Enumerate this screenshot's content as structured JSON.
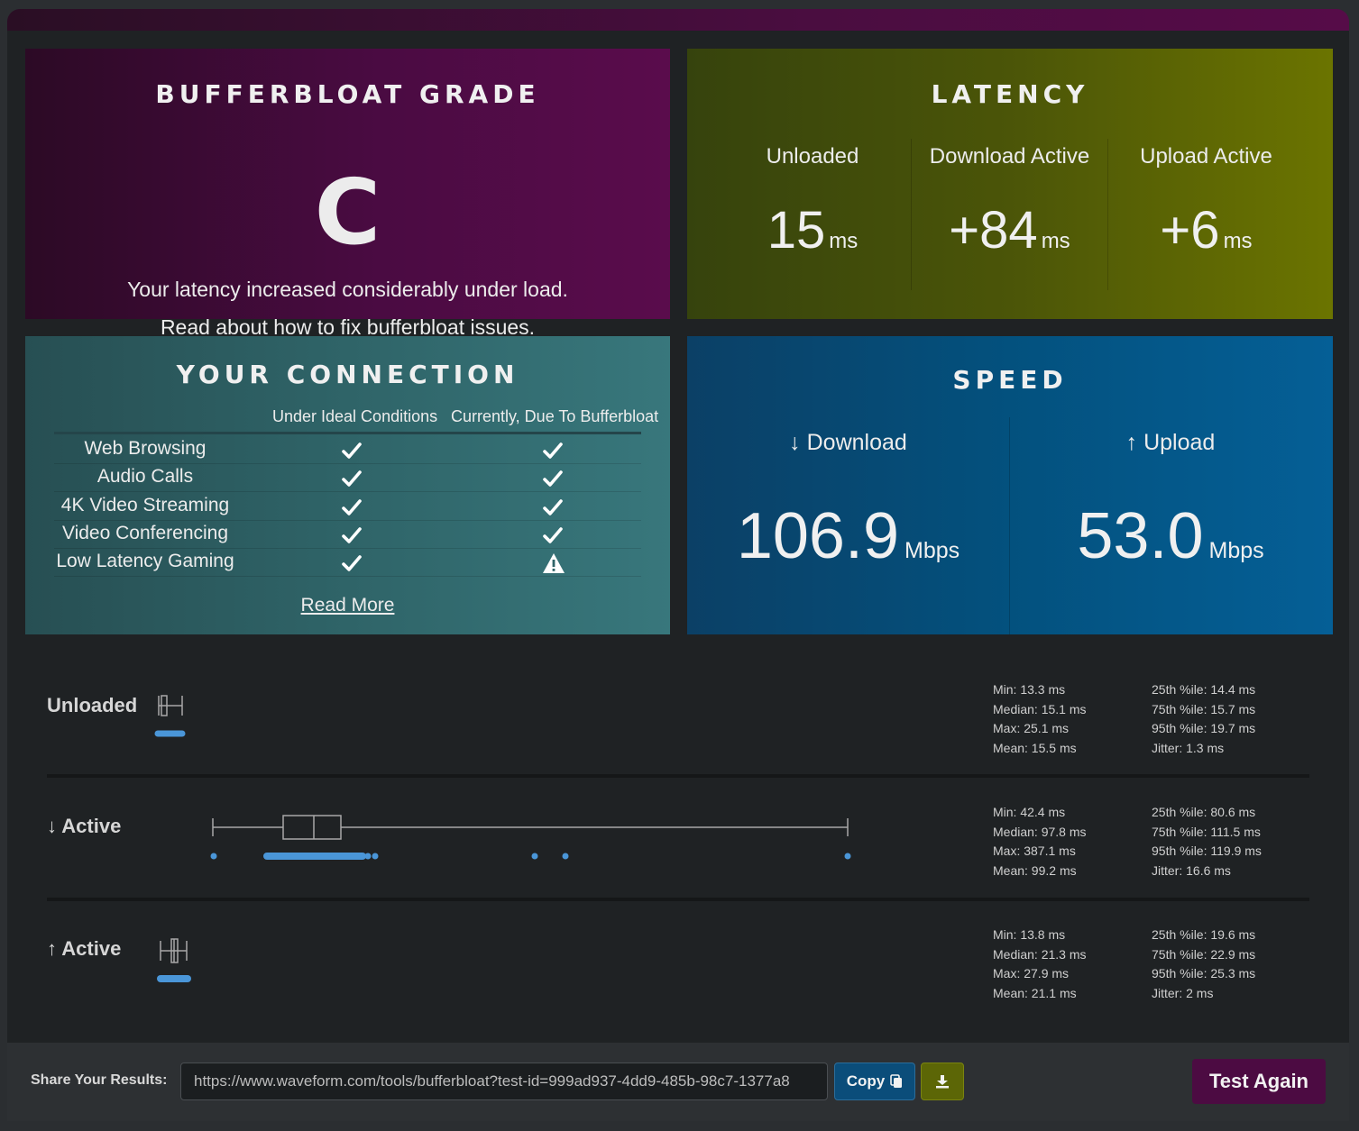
{
  "grade": {
    "title": "BUFFERBLOAT GRADE",
    "letter": "C",
    "description": "Your latency increased considerably under load.",
    "read_prefix": "Read about ",
    "read_link": "how to fix bufferbloat issues."
  },
  "latency": {
    "title": "LATENCY",
    "unit": "ms",
    "columns": [
      {
        "label": "Unloaded",
        "value": "15"
      },
      {
        "label": "Download Active",
        "value": "+84"
      },
      {
        "label": "Upload Active",
        "value": "+6"
      }
    ]
  },
  "connection": {
    "title": "YOUR CONNECTION",
    "header_ideal": "Under Ideal Conditions",
    "header_current": "Currently, Due To Bufferbloat",
    "rows": [
      {
        "name": "Web Browsing",
        "ideal": "check-icon",
        "current": "check-icon"
      },
      {
        "name": "Audio Calls",
        "ideal": "check-icon",
        "current": "check-icon"
      },
      {
        "name": "4K Video Streaming",
        "ideal": "check-icon",
        "current": "check-icon"
      },
      {
        "name": "Video Conferencing",
        "ideal": "check-icon",
        "current": "check-icon"
      },
      {
        "name": "Low Latency Gaming",
        "ideal": "check-icon",
        "current": "warning-icon"
      }
    ],
    "read_more": "Read More"
  },
  "speed": {
    "title": "SPEED",
    "unit": "Mbps",
    "download": {
      "label": "↓ Download",
      "value": "106.9"
    },
    "upload": {
      "label": "↑ Upload",
      "value": "53.0"
    }
  },
  "stats": [
    {
      "title": "Unloaded",
      "left": [
        "Min: 13.3 ms",
        "Median: 15.1 ms",
        "Max: 25.1 ms",
        "Mean: 15.5 ms"
      ],
      "right": [
        "25th %ile: 14.4 ms",
        "75th %ile: 15.7 ms",
        "95th %ile: 19.7 ms",
        "Jitter: 1.3 ms"
      ]
    },
    {
      "title": "↓ Active",
      "left": [
        "Min: 42.4 ms",
        "Median: 97.8 ms",
        "Max: 387.1 ms",
        "Mean: 99.2 ms"
      ],
      "right": [
        "25th %ile: 80.6 ms",
        "75th %ile: 111.5 ms",
        "95th %ile: 119.9 ms",
        "Jitter: 16.6 ms"
      ]
    },
    {
      "title": "↑ Active",
      "left": [
        "Min: 13.8 ms",
        "Median: 21.3 ms",
        "Max: 27.9 ms",
        "Mean: 21.1 ms"
      ],
      "right": [
        "25th %ile: 19.6 ms",
        "75th %ile: 22.9 ms",
        "95th %ile: 25.3 ms",
        "Jitter: 2 ms"
      ]
    }
  ],
  "footer": {
    "share_label": "Share Your Results:",
    "share_url": "https://www.waveform.com/tools/bufferbloat?test-id=999ad937-4dd9-485b-98c7-1377a8",
    "copy_label": "Copy",
    "test_again_label": "Test Again"
  },
  "colors": {
    "dot_blue": "#4a96d8",
    "box_stroke": "#a8a8a8"
  }
}
